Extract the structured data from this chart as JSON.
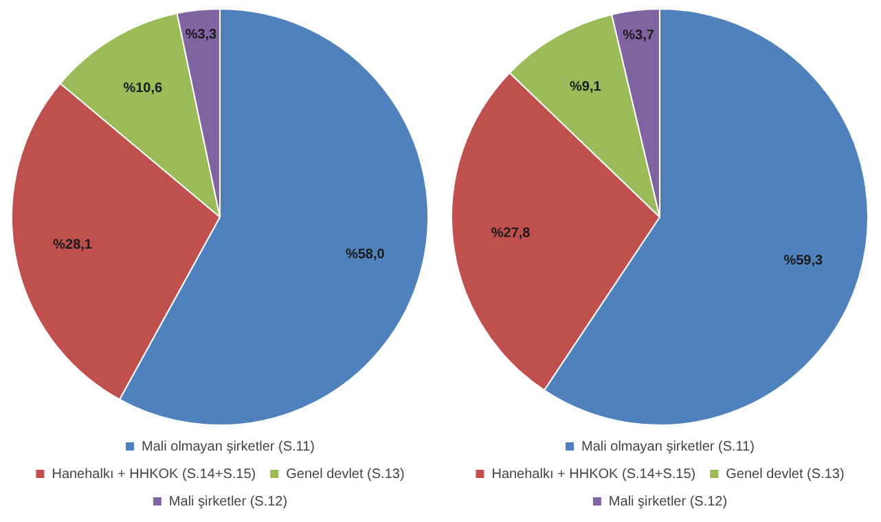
{
  "chart_data": [
    {
      "type": "pie",
      "categories": [
        "Mali olmayan şirketler (S.11)",
        "Hanehalkı + HHKOK (S.14+S.15)",
        "Genel devlet (S.13)",
        "Mali şirketler (S.12)"
      ],
      "values": [
        58.0,
        28.1,
        10.6,
        3.3
      ],
      "colors": [
        "#4f81bd",
        "#c0504d",
        "#9bbb59",
        "#8064a2"
      ],
      "value_labels": [
        "%58,0",
        "%28,1",
        "%10,6",
        "%3,3"
      ],
      "legend": "bottom"
    },
    {
      "type": "pie",
      "categories": [
        "Mali olmayan şirketler (S.11)",
        "Hanehalkı + HHKOK (S.14+S.15)",
        "Genel devlet (S.13)",
        "Mali şirketler (S.12)"
      ],
      "values": [
        59.3,
        27.8,
        9.1,
        3.7
      ],
      "colors": [
        "#4f81bd",
        "#c0504d",
        "#9bbb59",
        "#8064a2"
      ],
      "value_labels": [
        "%59,3",
        "%27,8",
        "%9,1",
        "%3,7"
      ],
      "legend": "bottom"
    }
  ]
}
